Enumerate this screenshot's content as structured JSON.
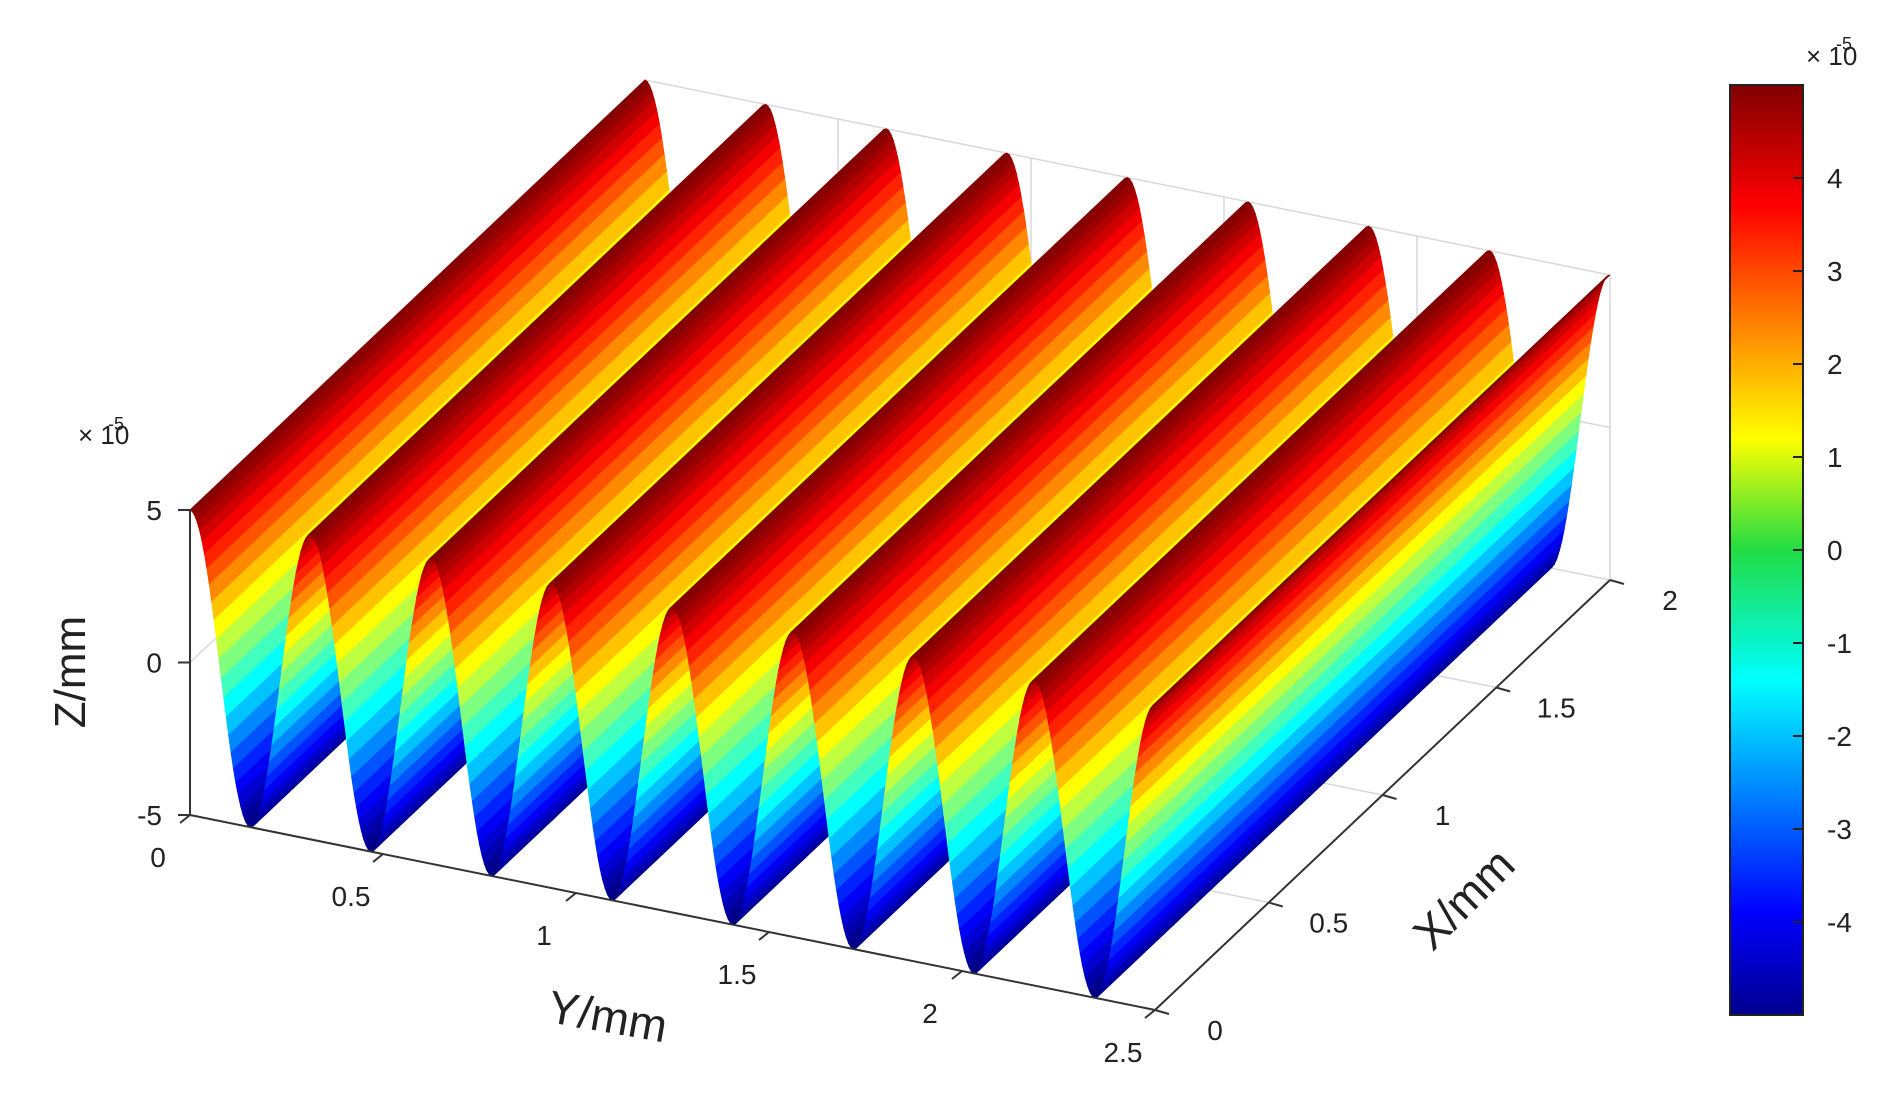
{
  "chart_data": {
    "type": "surface",
    "title": "",
    "xlabel": "X/mm",
    "ylabel": "Y/mm",
    "zlabel": "Z/mm",
    "x_range": [
      0,
      2
    ],
    "y_range": [
      0,
      2.5
    ],
    "z_range": [
      -5,
      5
    ],
    "x_ticks": [
      "0",
      "0.5",
      "1",
      "1.5",
      "2"
    ],
    "y_ticks": [
      "0",
      "0.5",
      "1",
      "1.5",
      "2",
      "2.5"
    ],
    "z_ticks": [
      "-5",
      "0",
      "5"
    ],
    "z_exponent_label": "× 10",
    "z_exponent_power": "-5",
    "surface": {
      "function": "z = 5e-5 * sin(2*pi*y/0.3125 + pi/2)",
      "amplitude_x1e5": 5,
      "period_y_mm": 0.3125,
      "ridges_count": 8
    },
    "colorbar": {
      "colormap": "jet",
      "range": [
        -5,
        5
      ],
      "ticks": [
        "-4",
        "-3",
        "-2",
        "-1",
        "0",
        "1",
        "2",
        "3",
        "4"
      ],
      "exponent_label": "× 10",
      "exponent_power": "-5"
    },
    "grid": true,
    "legend": "none"
  }
}
